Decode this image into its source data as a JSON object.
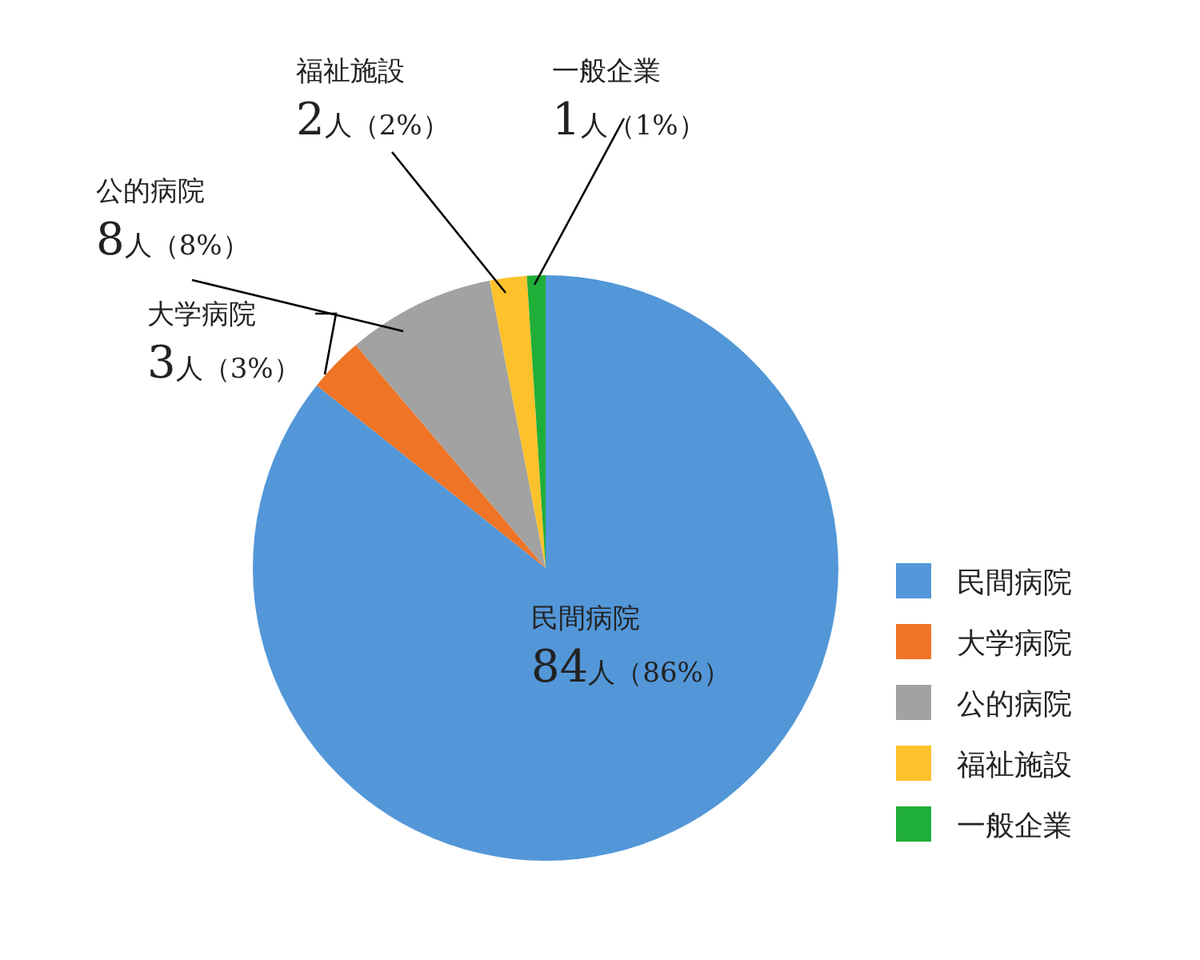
{
  "chart_data": {
    "type": "pie",
    "categories": [
      "民間病院",
      "大学病院",
      "公的病院",
      "福祉施設",
      "一般企業"
    ],
    "values": [
      84,
      3,
      8,
      2,
      1
    ],
    "colors": [
      "#5397d8",
      "#ef7425",
      "#a2a2a2",
      "#fdc22b",
      "#1fae38"
    ],
    "value_labels": [
      "84人（86%）",
      "3人（3%）",
      "8人（8%）",
      "2人（2%）",
      "1人（1%）"
    ],
    "legend": "right"
  }
}
